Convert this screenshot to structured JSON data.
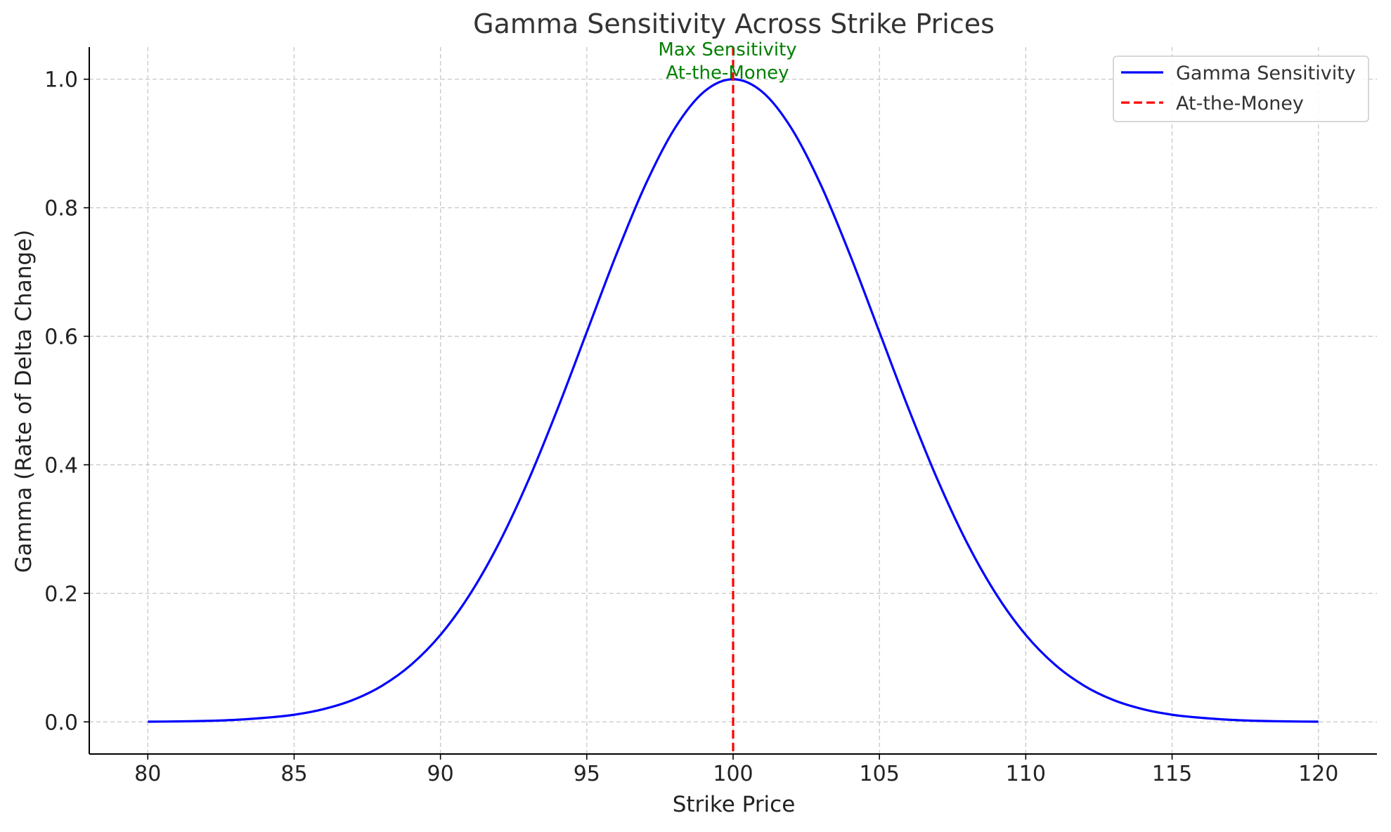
{
  "chart_data": {
    "type": "line",
    "title": "Gamma Sensitivity Across Strike Prices",
    "xlabel": "Strike Price",
    "ylabel": "Gamma (Rate of Delta Change)",
    "xlim": [
      78,
      122
    ],
    "ylim": [
      -0.05,
      1.05
    ],
    "xticks": [
      80,
      85,
      90,
      95,
      100,
      105,
      110,
      115,
      120
    ],
    "yticks": [
      0.0,
      0.2,
      0.4,
      0.6,
      0.8,
      1.0
    ],
    "grid": true,
    "legend_position": "top-right",
    "series": [
      {
        "name": "Gamma Sensitivity",
        "color": "#0000ff",
        "style": "solid",
        "x": [
          80,
          81,
          82,
          83,
          84,
          85,
          86,
          87,
          88,
          89,
          90,
          91,
          92,
          93,
          94,
          95,
          96,
          97,
          98,
          99,
          100,
          101,
          102,
          103,
          104,
          105,
          106,
          107,
          108,
          109,
          110,
          111,
          112,
          113,
          114,
          115,
          116,
          117,
          118,
          119,
          120
        ],
        "y": [
          0.0003,
          0.0007,
          0.0015,
          0.0032,
          0.0063,
          0.0111,
          0.0198,
          0.0339,
          0.0561,
          0.0889,
          0.1353,
          0.1979,
          0.278,
          0.3753,
          0.4868,
          0.6065,
          0.7261,
          0.8353,
          0.9231,
          0.9802,
          1.0,
          0.9802,
          0.9231,
          0.8353,
          0.7261,
          0.6065,
          0.4868,
          0.3753,
          0.278,
          0.1979,
          0.1353,
          0.0889,
          0.0561,
          0.0339,
          0.0198,
          0.0111,
          0.0063,
          0.0032,
          0.0015,
          0.0007,
          0.0003
        ]
      },
      {
        "name": "At-the-Money",
        "color": "#ff0000",
        "style": "dashed",
        "vline_x": 100
      }
    ],
    "annotation": {
      "lines": [
        "Max Sensitivity",
        "At-the-Money"
      ],
      "x": 100,
      "y": 1.0,
      "color": "#008000"
    }
  }
}
